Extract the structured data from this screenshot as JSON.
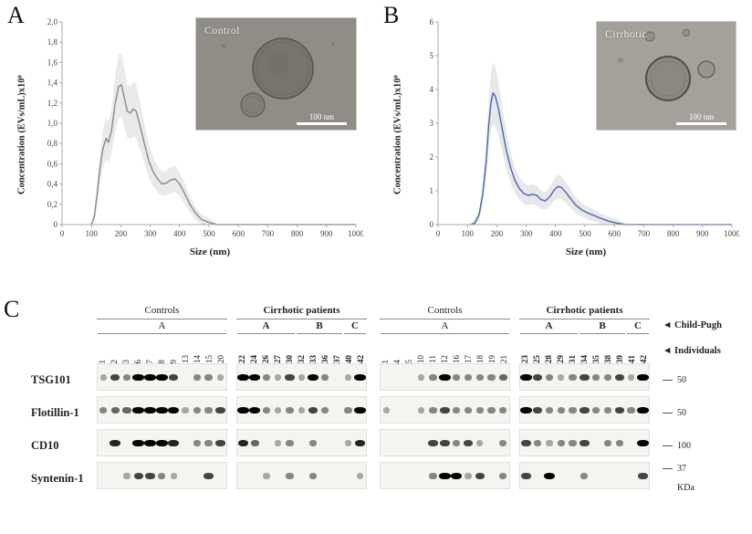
{
  "panelA": {
    "letter": "A",
    "ylabel": "Concentration (EVs/mL)x10⁸",
    "xlabel": "Size (nm)",
    "inset": {
      "label": "Control",
      "scalebar": "100 nm"
    }
  },
  "panelB": {
    "letter": "B",
    "ylabel": "Concentration (EVs/mL)x10⁸",
    "xlabel": "Size (nm)",
    "inset": {
      "label": "Cirrhotic",
      "scalebar": "100 nm"
    }
  },
  "chart_data": [
    {
      "type": "line",
      "panel": "A",
      "series_name": "Control EV size distribution",
      "xlabel": "Size (nm)",
      "ylabel": "Concentration (EVs/mL)x10⁸",
      "xlim": [
        0,
        1000
      ],
      "ylim": [
        0,
        2
      ],
      "xticks": [
        0,
        100,
        200,
        300,
        400,
        500,
        600,
        700,
        800,
        900,
        1000
      ],
      "yticks": [
        "0",
        "0,2",
        "0,4",
        "0,6",
        "0,8",
        "1,0",
        "1,2",
        "1,4",
        "1,6",
        "1,8",
        "2,0"
      ],
      "line_color": "#8a8a8a",
      "band_color": "#dcdcdc",
      "grid": false,
      "x": [
        100,
        110,
        120,
        130,
        140,
        150,
        158,
        168,
        180,
        192,
        202,
        212,
        222,
        232,
        242,
        252,
        265,
        280,
        295,
        310,
        325,
        340,
        355,
        370,
        385,
        400,
        415,
        435,
        455,
        475,
        500,
        530,
        1000
      ],
      "y": [
        0,
        0.08,
        0.32,
        0.58,
        0.76,
        0.85,
        0.81,
        0.92,
        1.18,
        1.36,
        1.38,
        1.25,
        1.12,
        1.1,
        1.14,
        1.12,
        0.98,
        0.8,
        0.63,
        0.52,
        0.45,
        0.4,
        0.41,
        0.44,
        0.45,
        0.4,
        0.32,
        0.2,
        0.11,
        0.05,
        0.02,
        0,
        0
      ]
    },
    {
      "type": "line",
      "panel": "B",
      "series_name": "Cirrhotic EV size distribution",
      "xlabel": "Size (nm)",
      "ylabel": "Concentration (EVs/mL)x10⁸",
      "xlim": [
        0,
        1000
      ],
      "ylim": [
        0,
        6
      ],
      "xticks": [
        0,
        100,
        200,
        300,
        400,
        500,
        600,
        700,
        800,
        900,
        1000
      ],
      "yticks": [
        "0",
        "1",
        "2",
        "3",
        "4",
        "5",
        "6"
      ],
      "line_color": "#4a66b0",
      "band_color": "#d8d8d8",
      "grid": false,
      "x": [
        110,
        125,
        140,
        152,
        163,
        172,
        180,
        187,
        195,
        205,
        218,
        232,
        248,
        262,
        278,
        292,
        308,
        322,
        336,
        350,
        365,
        380,
        395,
        408,
        420,
        435,
        450,
        468,
        488,
        508,
        530,
        555,
        580,
        610,
        640,
        1000
      ],
      "y": [
        0,
        0.04,
        0.3,
        0.9,
        1.8,
        2.9,
        3.6,
        3.9,
        3.8,
        3.45,
        2.85,
        2.2,
        1.65,
        1.3,
        1.05,
        0.92,
        0.86,
        0.9,
        0.86,
        0.74,
        0.7,
        0.82,
        1.02,
        1.13,
        1.1,
        0.95,
        0.78,
        0.58,
        0.44,
        0.35,
        0.27,
        0.18,
        0.1,
        0.04,
        0,
        0
      ]
    }
  ],
  "panelC": {
    "letter": "C",
    "row_labels": [
      "TSG101",
      "Flotillin-1",
      "CD10",
      "Syntenin-1"
    ],
    "markers": [
      "50",
      "50",
      "100",
      "37"
    ],
    "kda": "KDa",
    "arrows": {
      "child_pugh": "◄ Child-Pugh",
      "individuals": "◄ Individuals"
    },
    "blocks": [
      {
        "controls_label": "Controls",
        "cirrhotic_label": "Cirrhotic patients",
        "controls_subgroups": [
          {
            "label": "A",
            "span": 11
          }
        ],
        "cirrhotic_subgroups": [
          {
            "label": "A",
            "span": 5
          },
          {
            "label": "B",
            "span": 4
          },
          {
            "label": "C",
            "span": 2
          }
        ],
        "lanes_controls": [
          "1",
          "2",
          "3",
          "6",
          "7",
          "8",
          "9",
          "13",
          "14",
          "15",
          "20"
        ],
        "lanes_cirrhotic": [
          "22",
          "24",
          "26",
          "27",
          "30",
          "32",
          "33",
          "36",
          "37",
          "40",
          "42"
        ],
        "bands": {
          "TSG101": [
            0.5,
            2,
            1,
            3,
            3,
            3,
            2,
            0,
            1,
            1,
            0.5,
            3,
            3,
            1,
            0.5,
            2,
            0.5,
            3,
            1,
            0,
            0.5,
            3
          ],
          "Flotillin-1": [
            1,
            1.5,
            1.5,
            3,
            3,
            3,
            3,
            0.5,
            1,
            1,
            2,
            3,
            3,
            1,
            0.5,
            1,
            0.5,
            2,
            1,
            0,
            1,
            3
          ],
          "CD10": [
            0,
            2.5,
            0,
            3,
            3,
            3,
            2.5,
            0,
            1,
            1,
            2,
            2.5,
            1.5,
            0,
            0.5,
            1,
            0,
            1,
            0,
            0,
            0.5,
            2.5
          ],
          "Syntenin-1": [
            0,
            0,
            0.5,
            2,
            2,
            1,
            0.5,
            0,
            0,
            2,
            0,
            0,
            0,
            0.5,
            0,
            1,
            0,
            1,
            0,
            0,
            0,
            0.5
          ]
        }
      },
      {
        "controls_label": "Controls",
        "cirrhotic_label": "Cirrhotic patients",
        "controls_subgroups": [
          {
            "label": "A",
            "span": 11
          }
        ],
        "cirrhotic_subgroups": [
          {
            "label": "A",
            "span": 5
          },
          {
            "label": "B",
            "span": 4
          },
          {
            "label": "C",
            "span": 2
          }
        ],
        "lanes_controls": [
          "1",
          "4",
          "5",
          "10",
          "11",
          "12",
          "16",
          "17",
          "18",
          "19",
          "21"
        ],
        "lanes_cirrhotic": [
          "23",
          "25",
          "28",
          "29",
          "31",
          "34",
          "35",
          "38",
          "39",
          "41",
          "42"
        ],
        "bands": {
          "TSG101": [
            0,
            0,
            0,
            0.5,
            1,
            3,
            1,
            1,
            1,
            1,
            1.5,
            3,
            2,
            1,
            0.5,
            1,
            2,
            1,
            1,
            2,
            0.5,
            3
          ],
          "Flotillin-1": [
            0.5,
            0,
            0,
            0.5,
            1,
            2,
            1,
            1,
            1,
            1,
            1,
            3,
            2,
            1,
            1,
            1,
            2,
            1,
            1,
            2,
            1,
            3
          ],
          "CD10": [
            0,
            0,
            0,
            0,
            2,
            2,
            1,
            2,
            0.5,
            0,
            1,
            2,
            1,
            0.5,
            1,
            1,
            2,
            0,
            1,
            1,
            0,
            3
          ],
          "Syntenin-1": [
            0,
            0,
            0,
            0,
            1,
            3,
            3,
            0.5,
            2,
            0,
            1,
            2,
            0,
            3,
            0,
            0,
            1,
            0,
            0,
            0,
            0,
            2
          ]
        }
      }
    ]
  }
}
